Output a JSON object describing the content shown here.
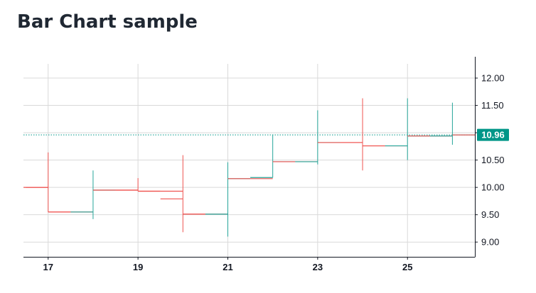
{
  "title": "Bar Chart sample",
  "chart_data": {
    "type": "ohlc",
    "y_ticks": [
      "12.00",
      "11.50",
      "11.00",
      "10.50",
      "10.00",
      "9.50",
      "9.00"
    ],
    "x_tick_labels": [
      {
        "label": "17",
        "x": 17
      },
      {
        "label": "19",
        "x": 19
      },
      {
        "label": "21",
        "x": 21
      },
      {
        "label": "23",
        "x": 23
      },
      {
        "label": "25",
        "x": 25
      }
    ],
    "x_range": [
      16.45,
      26.5
    ],
    "y_range": [
      8.73,
      12.26
    ],
    "bars": [
      {
        "x": 16.5,
        "open": 10.0,
        "high": 10.0,
        "low": 10.0,
        "close": 10.0
      },
      {
        "x": 17,
        "open": 10.0,
        "high": 10.64,
        "low": 9.55,
        "close": 9.55
      },
      {
        "x": 17.5,
        "open": 9.55,
        "high": 9.55,
        "low": 9.55,
        "close": 9.55
      },
      {
        "x": 18,
        "open": 9.55,
        "high": 10.31,
        "low": 9.42,
        "close": 9.95
      },
      {
        "x": 18.5,
        "open": 9.95,
        "high": 9.95,
        "low": 9.95,
        "close": 9.95
      },
      {
        "x": 19,
        "open": 9.95,
        "high": 10.17,
        "low": 9.93,
        "close": 9.93
      },
      {
        "x": 19.5,
        "open": 9.93,
        "high": 9.93,
        "low": 9.93,
        "close": 9.93
      },
      {
        "x": 20,
        "open": 9.79,
        "high": 10.59,
        "low": 9.18,
        "close": 9.51
      },
      {
        "x": 20.5,
        "open": 9.51,
        "high": 9.51,
        "low": 9.51,
        "close": 9.51
      },
      {
        "x": 21,
        "open": 9.51,
        "high": 10.46,
        "low": 9.1,
        "close": 10.16
      },
      {
        "x": 21.5,
        "open": 10.16,
        "high": 10.16,
        "low": 10.16,
        "close": 10.16
      },
      {
        "x": 22,
        "open": 10.18,
        "high": 10.97,
        "low": 10.18,
        "close": 10.47
      },
      {
        "x": 22.5,
        "open": 10.47,
        "high": 10.47,
        "low": 10.47,
        "close": 10.47
      },
      {
        "x": 23,
        "open": 10.47,
        "high": 11.41,
        "low": 10.42,
        "close": 10.82
      },
      {
        "x": 23.5,
        "open": 10.82,
        "high": 10.82,
        "low": 10.82,
        "close": 10.82
      },
      {
        "x": 24,
        "open": 10.82,
        "high": 11.63,
        "low": 10.31,
        "close": 10.76
      },
      {
        "x": 24.5,
        "open": 10.76,
        "high": 10.76,
        "low": 10.76,
        "close": 10.76
      },
      {
        "x": 25,
        "open": 10.76,
        "high": 11.63,
        "low": 10.5,
        "close": 10.94
      },
      {
        "x": 25.5,
        "open": 10.94,
        "high": 10.94,
        "low": 10.94,
        "close": 10.94
      },
      {
        "x": 26,
        "open": 10.94,
        "high": 11.55,
        "low": 10.78,
        "close": 10.96
      },
      {
        "x": 26.5,
        "open": 10.96,
        "high": 10.96,
        "low": 10.96,
        "close": 10.96
      }
    ],
    "last_price": 10.96,
    "last_price_label": "10.96",
    "grid": true,
    "colors": {
      "up": "#26a69a",
      "down": "#ef5350",
      "flat": "#ef5350",
      "grid": "#d9d9d9",
      "axis": "#131722",
      "price_tag": "#009688",
      "price_line": "#009688"
    }
  }
}
